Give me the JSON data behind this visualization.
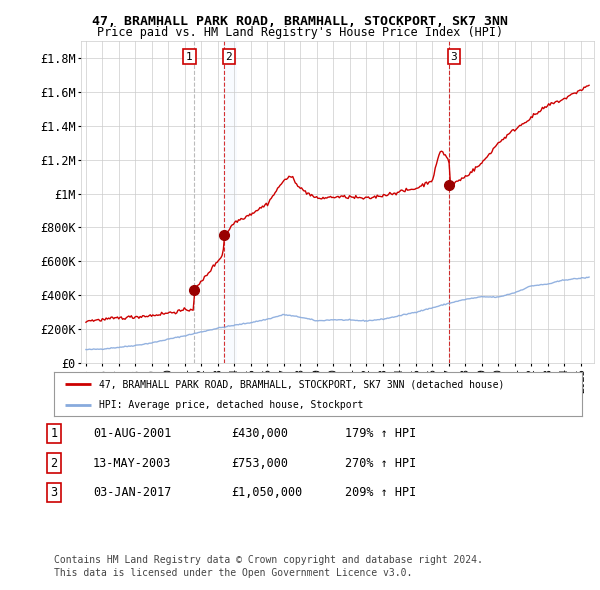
{
  "title": "47, BRAMHALL PARK ROAD, BRAMHALL, STOCKPORT, SK7 3NN",
  "subtitle": "Price paid vs. HM Land Registry's House Price Index (HPI)",
  "ylim": [
    0,
    1900000
  ],
  "yticks": [
    0,
    200000,
    400000,
    600000,
    800000,
    1000000,
    1200000,
    1400000,
    1600000,
    1800000
  ],
  "ytick_labels": [
    "£0",
    "£200K",
    "£400K",
    "£600K",
    "£800K",
    "£1M",
    "£1.2M",
    "£1.4M",
    "£1.6M",
    "£1.8M"
  ],
  "bg_color": "#ffffff",
  "grid_color": "#cccccc",
  "sale_color": "#cc0000",
  "hpi_color": "#88aadd",
  "highlight_color": "#ddeeff",
  "purchases": [
    {
      "label": "1",
      "date_num": 2001.58,
      "price": 430000,
      "vline_style": "--",
      "vline_color": "#aaaaaa"
    },
    {
      "label": "2",
      "date_num": 2003.37,
      "price": 753000,
      "vline_style": "--",
      "vline_color": "#cc0000"
    },
    {
      "label": "3",
      "date_num": 2017.008,
      "price": 1050000,
      "vline_style": "--",
      "vline_color": "#cc0000"
    }
  ],
  "legend_line1": "47, BRAMHALL PARK ROAD, BRAMHALL, STOCKPORT, SK7 3NN (detached house)",
  "legend_line2": "HPI: Average price, detached house, Stockport",
  "table_entries": [
    {
      "num": "1",
      "date": "01-AUG-2001",
      "price": "£430,000",
      "hpi": "179% ↑ HPI"
    },
    {
      "num": "2",
      "date": "13-MAY-2003",
      "price": "£753,000",
      "hpi": "270% ↑ HPI"
    },
    {
      "num": "3",
      "date": "03-JAN-2017",
      "price": "£1,050,000",
      "hpi": "209% ↑ HPI"
    }
  ],
  "footnote1": "Contains HM Land Registry data © Crown copyright and database right 2024.",
  "footnote2": "This data is licensed under the Open Government Licence v3.0.",
  "hpi_base_points_x": [
    1995,
    1996,
    1997,
    1998,
    1999,
    2000,
    2001,
    2002,
    2003,
    2004,
    2005,
    2006,
    2007,
    2008,
    2009,
    2010,
    2011,
    2012,
    2013,
    2014,
    2015,
    2016,
    2017,
    2018,
    2019,
    2020,
    2021,
    2022,
    2023,
    2024,
    2025.5
  ],
  "hpi_base_points_y": [
    78000,
    82000,
    92000,
    103000,
    118000,
    140000,
    160000,
    183000,
    205000,
    222000,
    238000,
    258000,
    285000,
    270000,
    248000,
    255000,
    252000,
    248000,
    258000,
    278000,
    300000,
    325000,
    352000,
    375000,
    390000,
    388000,
    415000,
    455000,
    465000,
    490000,
    505000
  ],
  "prop_base_points_x": [
    1995,
    1996,
    1997,
    1998,
    1999,
    2000,
    2001.5,
    2001.6,
    2002,
    2003.3,
    2003.4,
    2004,
    2005,
    2006,
    2007,
    2007.5,
    2008,
    2009,
    2010,
    2011,
    2012,
    2013,
    2014,
    2015,
    2016,
    2016.5,
    2017.0,
    2017.1,
    2018,
    2019,
    2020,
    2021,
    2022,
    2023,
    2024,
    2025.5
  ],
  "prop_base_points_y": [
    248000,
    255000,
    265000,
    272000,
    280000,
    295000,
    318000,
    430000,
    480000,
    640000,
    753000,
    830000,
    880000,
    940000,
    1080000,
    1100000,
    1030000,
    970000,
    980000,
    980000,
    970000,
    990000,
    1010000,
    1030000,
    1080000,
    1260000,
    1200000,
    1050000,
    1100000,
    1180000,
    1300000,
    1380000,
    1450000,
    1520000,
    1560000,
    1640000
  ]
}
